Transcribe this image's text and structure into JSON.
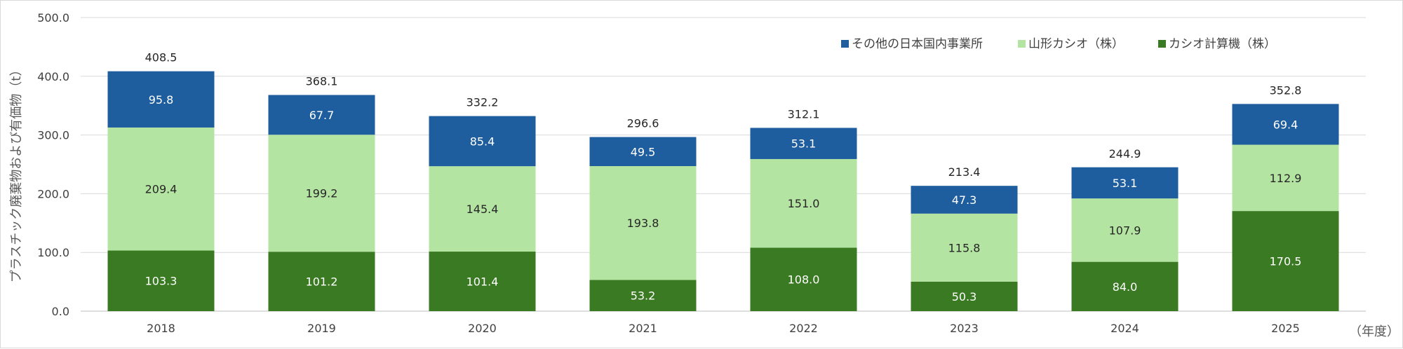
{
  "chart_data": {
    "type": "bar",
    "stacked": true,
    "categories": [
      "2018",
      "2019",
      "2020",
      "2021",
      "2022",
      "2023",
      "2024",
      "2025"
    ],
    "series": [
      {
        "name": "カシオ計算機（株）",
        "color": "#3a7a22",
        "label_color": "#ffffff",
        "values": [
          103.3,
          101.2,
          101.4,
          53.2,
          108.0,
          50.3,
          84.0,
          170.5
        ]
      },
      {
        "name": "山形カシオ（株）",
        "color": "#b4e4a2",
        "label_color": "#262626",
        "values": [
          209.4,
          199.2,
          145.4,
          193.8,
          151.0,
          115.8,
          107.9,
          112.9
        ]
      },
      {
        "name": "その他の日本国内事業所",
        "color": "#1f5e9e",
        "label_color": "#ffffff",
        "values": [
          95.8,
          67.7,
          85.4,
          49.5,
          53.1,
          47.3,
          53.1,
          69.4
        ]
      }
    ],
    "totals": [
      408.5,
      368.1,
      332.2,
      296.6,
      312.1,
      213.4,
      244.9,
      352.8
    ],
    "ylabel": "プラスチック廃棄物および有価物（t）",
    "xlabel": "（年度）",
    "ylim": [
      0,
      500
    ],
    "yticks": [
      "0.0",
      "100.0",
      "200.0",
      "300.0",
      "400.0",
      "500.0"
    ],
    "grid": true,
    "legend_position": "top-right",
    "legend_order": [
      2,
      1,
      0
    ]
  }
}
